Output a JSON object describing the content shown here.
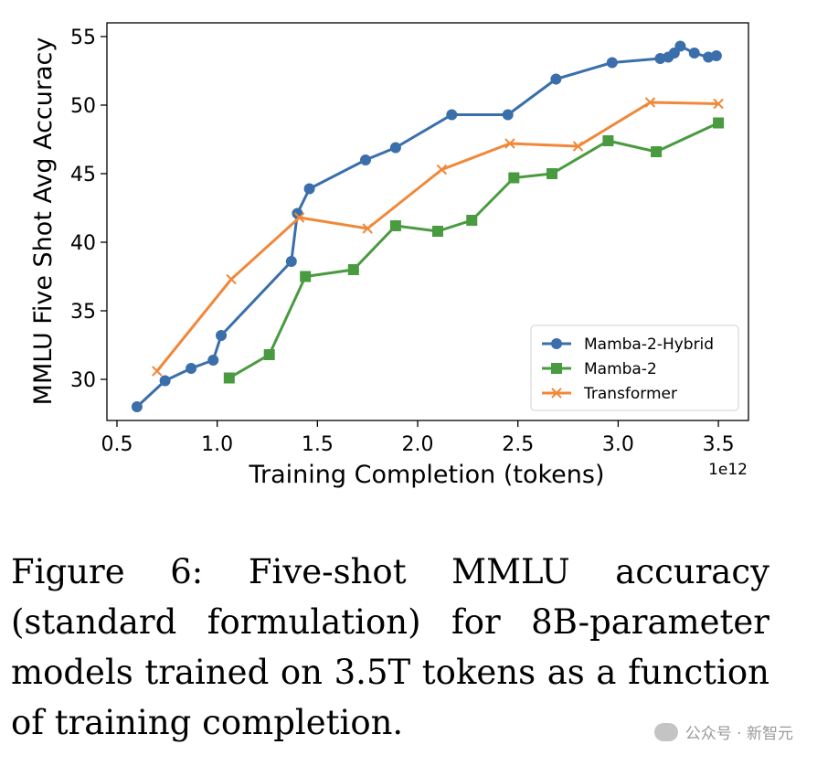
{
  "chart_data": {
    "type": "line",
    "xlabel": "Training Completion (tokens)",
    "ylabel": "MMLU Five Shot Avg Accuracy",
    "x_offset_label": "1e12",
    "xlim": [
      0.45,
      3.65
    ],
    "ylim": [
      27.0,
      56.0
    ],
    "x_ticks": [
      0.5,
      1.0,
      1.5,
      2.0,
      2.5,
      3.0,
      3.5
    ],
    "x_tick_labels": [
      "0.5",
      "1.0",
      "1.5",
      "2.0",
      "2.5",
      "3.0",
      "3.5"
    ],
    "y_ticks": [
      30,
      35,
      40,
      45,
      50,
      55
    ],
    "y_tick_labels": [
      "30",
      "35",
      "40",
      "45",
      "50",
      "55"
    ],
    "grid": false,
    "legend_position": "lower-right",
    "series": [
      {
        "name": "Mamba-2-Hybrid",
        "color": "#3a6fab",
        "marker": "circle",
        "x": [
          0.6,
          0.74,
          0.87,
          0.98,
          1.02,
          1.37,
          1.4,
          1.46,
          1.74,
          1.89,
          2.17,
          2.45,
          2.69,
          2.97,
          3.21,
          3.25,
          3.28,
          3.31,
          3.38,
          3.45,
          3.49
        ],
        "y": [
          28.0,
          29.9,
          30.8,
          31.4,
          33.2,
          38.6,
          42.1,
          43.9,
          46.0,
          46.9,
          49.3,
          49.3,
          51.9,
          53.1,
          53.4,
          53.5,
          53.8,
          54.3,
          53.8,
          53.5,
          53.6
        ]
      },
      {
        "name": "Mamba-2",
        "color": "#4a9a3f",
        "marker": "square",
        "x": [
          1.06,
          1.26,
          1.44,
          1.68,
          1.89,
          2.1,
          2.27,
          2.48,
          2.67,
          2.95,
          3.19,
          3.5
        ],
        "y": [
          30.1,
          31.8,
          37.5,
          38.0,
          41.2,
          40.8,
          41.6,
          44.7,
          45.0,
          47.4,
          46.6,
          48.7
        ]
      },
      {
        "name": "Transformer",
        "color": "#f0883a",
        "marker": "x",
        "x": [
          0.7,
          1.07,
          1.41,
          1.75,
          2.12,
          2.46,
          2.8,
          3.16,
          3.5
        ],
        "y": [
          30.6,
          37.3,
          41.8,
          41.0,
          45.3,
          47.2,
          47.0,
          50.2,
          50.1
        ]
      }
    ]
  },
  "caption": {
    "text": "Figure 6:  Five-shot MMLU accuracy (standard formulation) for 8B-parameter models trained on 3.5T tokens as a function of training completion."
  },
  "watermark": {
    "text": "公众号 · 新智元"
  }
}
